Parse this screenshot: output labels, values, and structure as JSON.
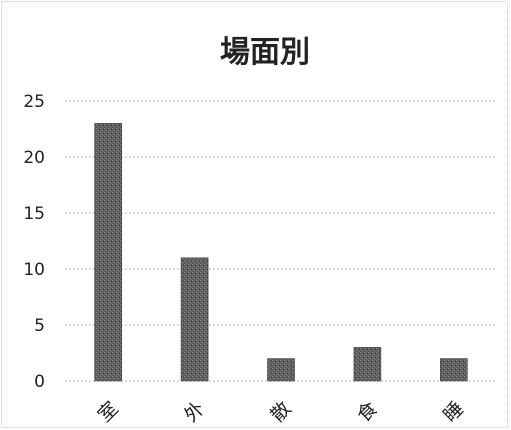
{
  "chart_data": {
    "type": "bar",
    "title": "場面別",
    "categories": [
      "室",
      "外",
      "散",
      "食",
      "睡"
    ],
    "values": [
      23,
      11,
      2,
      3,
      2
    ],
    "ylim": [
      0,
      25
    ],
    "yticks": [
      0,
      5,
      10,
      15,
      20,
      25
    ],
    "xlabel": "",
    "ylabel": "",
    "grid": true,
    "legend": "none",
    "colors": {
      "bar": "#5f5f5f",
      "bar_edge": "#3d3d3d",
      "grid": "#b5b5b5",
      "text": "#222222"
    }
  }
}
